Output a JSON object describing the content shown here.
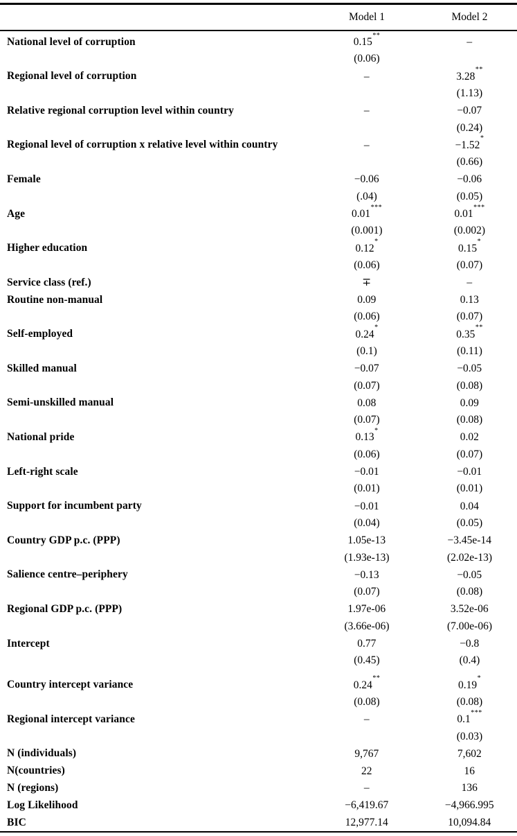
{
  "table": {
    "columns": [
      "Model 1",
      "Model 2"
    ],
    "rows": [
      {
        "label": "National level of corruption",
        "m1": "0.15",
        "m1_stars": "**",
        "m1_se": "(0.06)",
        "m2": "–",
        "m2_se": ""
      },
      {
        "label": "Regional level of corruption",
        "m1": "–",
        "m1_se": "",
        "m2": "3.28",
        "m2_stars": "**",
        "m2_se": "(1.13)"
      },
      {
        "label": "Relative regional corruption level within country",
        "m1": "–",
        "m1_se": "",
        "m2": "−0.07",
        "m2_se": "(0.24)"
      },
      {
        "label": "Regional level of corruption x relative level within country",
        "m1": "–",
        "m1_se": "",
        "m2": "−1.52",
        "m2_stars": "*",
        "m2_se": "(0.66)"
      },
      {
        "label": "Female",
        "m1": "−0.06",
        "m1_se": "(.04)",
        "m2": "−0.06",
        "m2_se": "(0.05)"
      },
      {
        "label": "Age",
        "m1": "0.01",
        "m1_stars": "***",
        "m1_se": "(0.001)",
        "m2": "0.01",
        "m2_stars": "***",
        "m2_se": "(0.002)"
      },
      {
        "label": "Higher education",
        "m1": "0.12",
        "m1_stars": "*",
        "m1_se": "(0.06)",
        "m2": "0.15",
        "m2_stars": "*",
        "m2_se": "(0.07)"
      },
      {
        "label": "Service class (ref.)",
        "m1": "∓",
        "m2": "–"
      },
      {
        "label": "Routine non-manual",
        "m1": "0.09",
        "m1_se": "(0.06)",
        "m2": "0.13",
        "m2_se": "(0.07)"
      },
      {
        "label": "Self-employed",
        "m1": "0.24",
        "m1_stars": "*",
        "m1_se": "(0.1)",
        "m2": "0.35",
        "m2_stars": "**",
        "m2_se": "(0.11)"
      },
      {
        "label": "Skilled manual",
        "m1": "−0.07",
        "m1_se": "(0.07)",
        "m2": "−0.05",
        "m2_se": "(0.08)"
      },
      {
        "label": "Semi-unskilled manual",
        "m1": "0.08",
        "m1_se": "(0.07)",
        "m2": "0.09",
        "m2_se": "(0.08)"
      },
      {
        "label": "National pride",
        "m1": "0.13",
        "m1_stars": "*",
        "m1_se": "(0.06)",
        "m2": "0.02",
        "m2_se": "(0.07)"
      },
      {
        "label": "Left-right scale",
        "m1": "−0.01",
        "m1_se": "(0.01)",
        "m2": "−0.01",
        "m2_se": "(0.01)"
      },
      {
        "label": "Support for incumbent party",
        "m1": "−0.01",
        "m1_se": "(0.04)",
        "m2": "0.04",
        "m2_se": "(0.05)"
      },
      {
        "label": "Country GDP p.c. (PPP)",
        "m1": "1.05e-13",
        "m1_se": "(1.93e-13)",
        "m2": "−3.45e-14",
        "m2_se": "(2.02e-13)"
      },
      {
        "label": "Salience centre–periphery",
        "m1": "−0.13",
        "m1_se": "(0.07)",
        "m2": "−0.05",
        "m2_se": "(0.08)"
      },
      {
        "label": "Regional GDP p.c. (PPP)",
        "m1": "1.97e-06",
        "m1_se": "(3.66e-06)",
        "m2": "3.52e-06",
        "m2_se": "(7.00e-06)"
      },
      {
        "label": "Intercept",
        "m1": "0.77",
        "m1_se": "(0.45)",
        "m2": "−0.8",
        "m2_se": "(0.4)"
      },
      {
        "label": "Country intercept variance",
        "gap_before": true,
        "m1": "0.24",
        "m1_stars": "**",
        "m1_se": "(0.08)",
        "m2": "0.19",
        "m2_stars": "*",
        "m2_se": "(0.08)"
      },
      {
        "label": "Regional intercept variance",
        "m1": "–",
        "m1_se": "",
        "m2": "0.1",
        "m2_stars": "***",
        "m2_se": "(0.03)"
      },
      {
        "label": "N (individuals)",
        "m1": "9,767",
        "m2": "7,602"
      },
      {
        "label": "N(countries)",
        "m1": "22",
        "m2": "16"
      },
      {
        "label": "N (regions)",
        "m1": "–",
        "m2": "136"
      },
      {
        "label": "Log Likelihood",
        "m1": "−6,419.67",
        "m2": "−4,966.995"
      },
      {
        "label": "BIC",
        "m1": "12,977.14",
        "m2": "10,094.84"
      }
    ]
  }
}
